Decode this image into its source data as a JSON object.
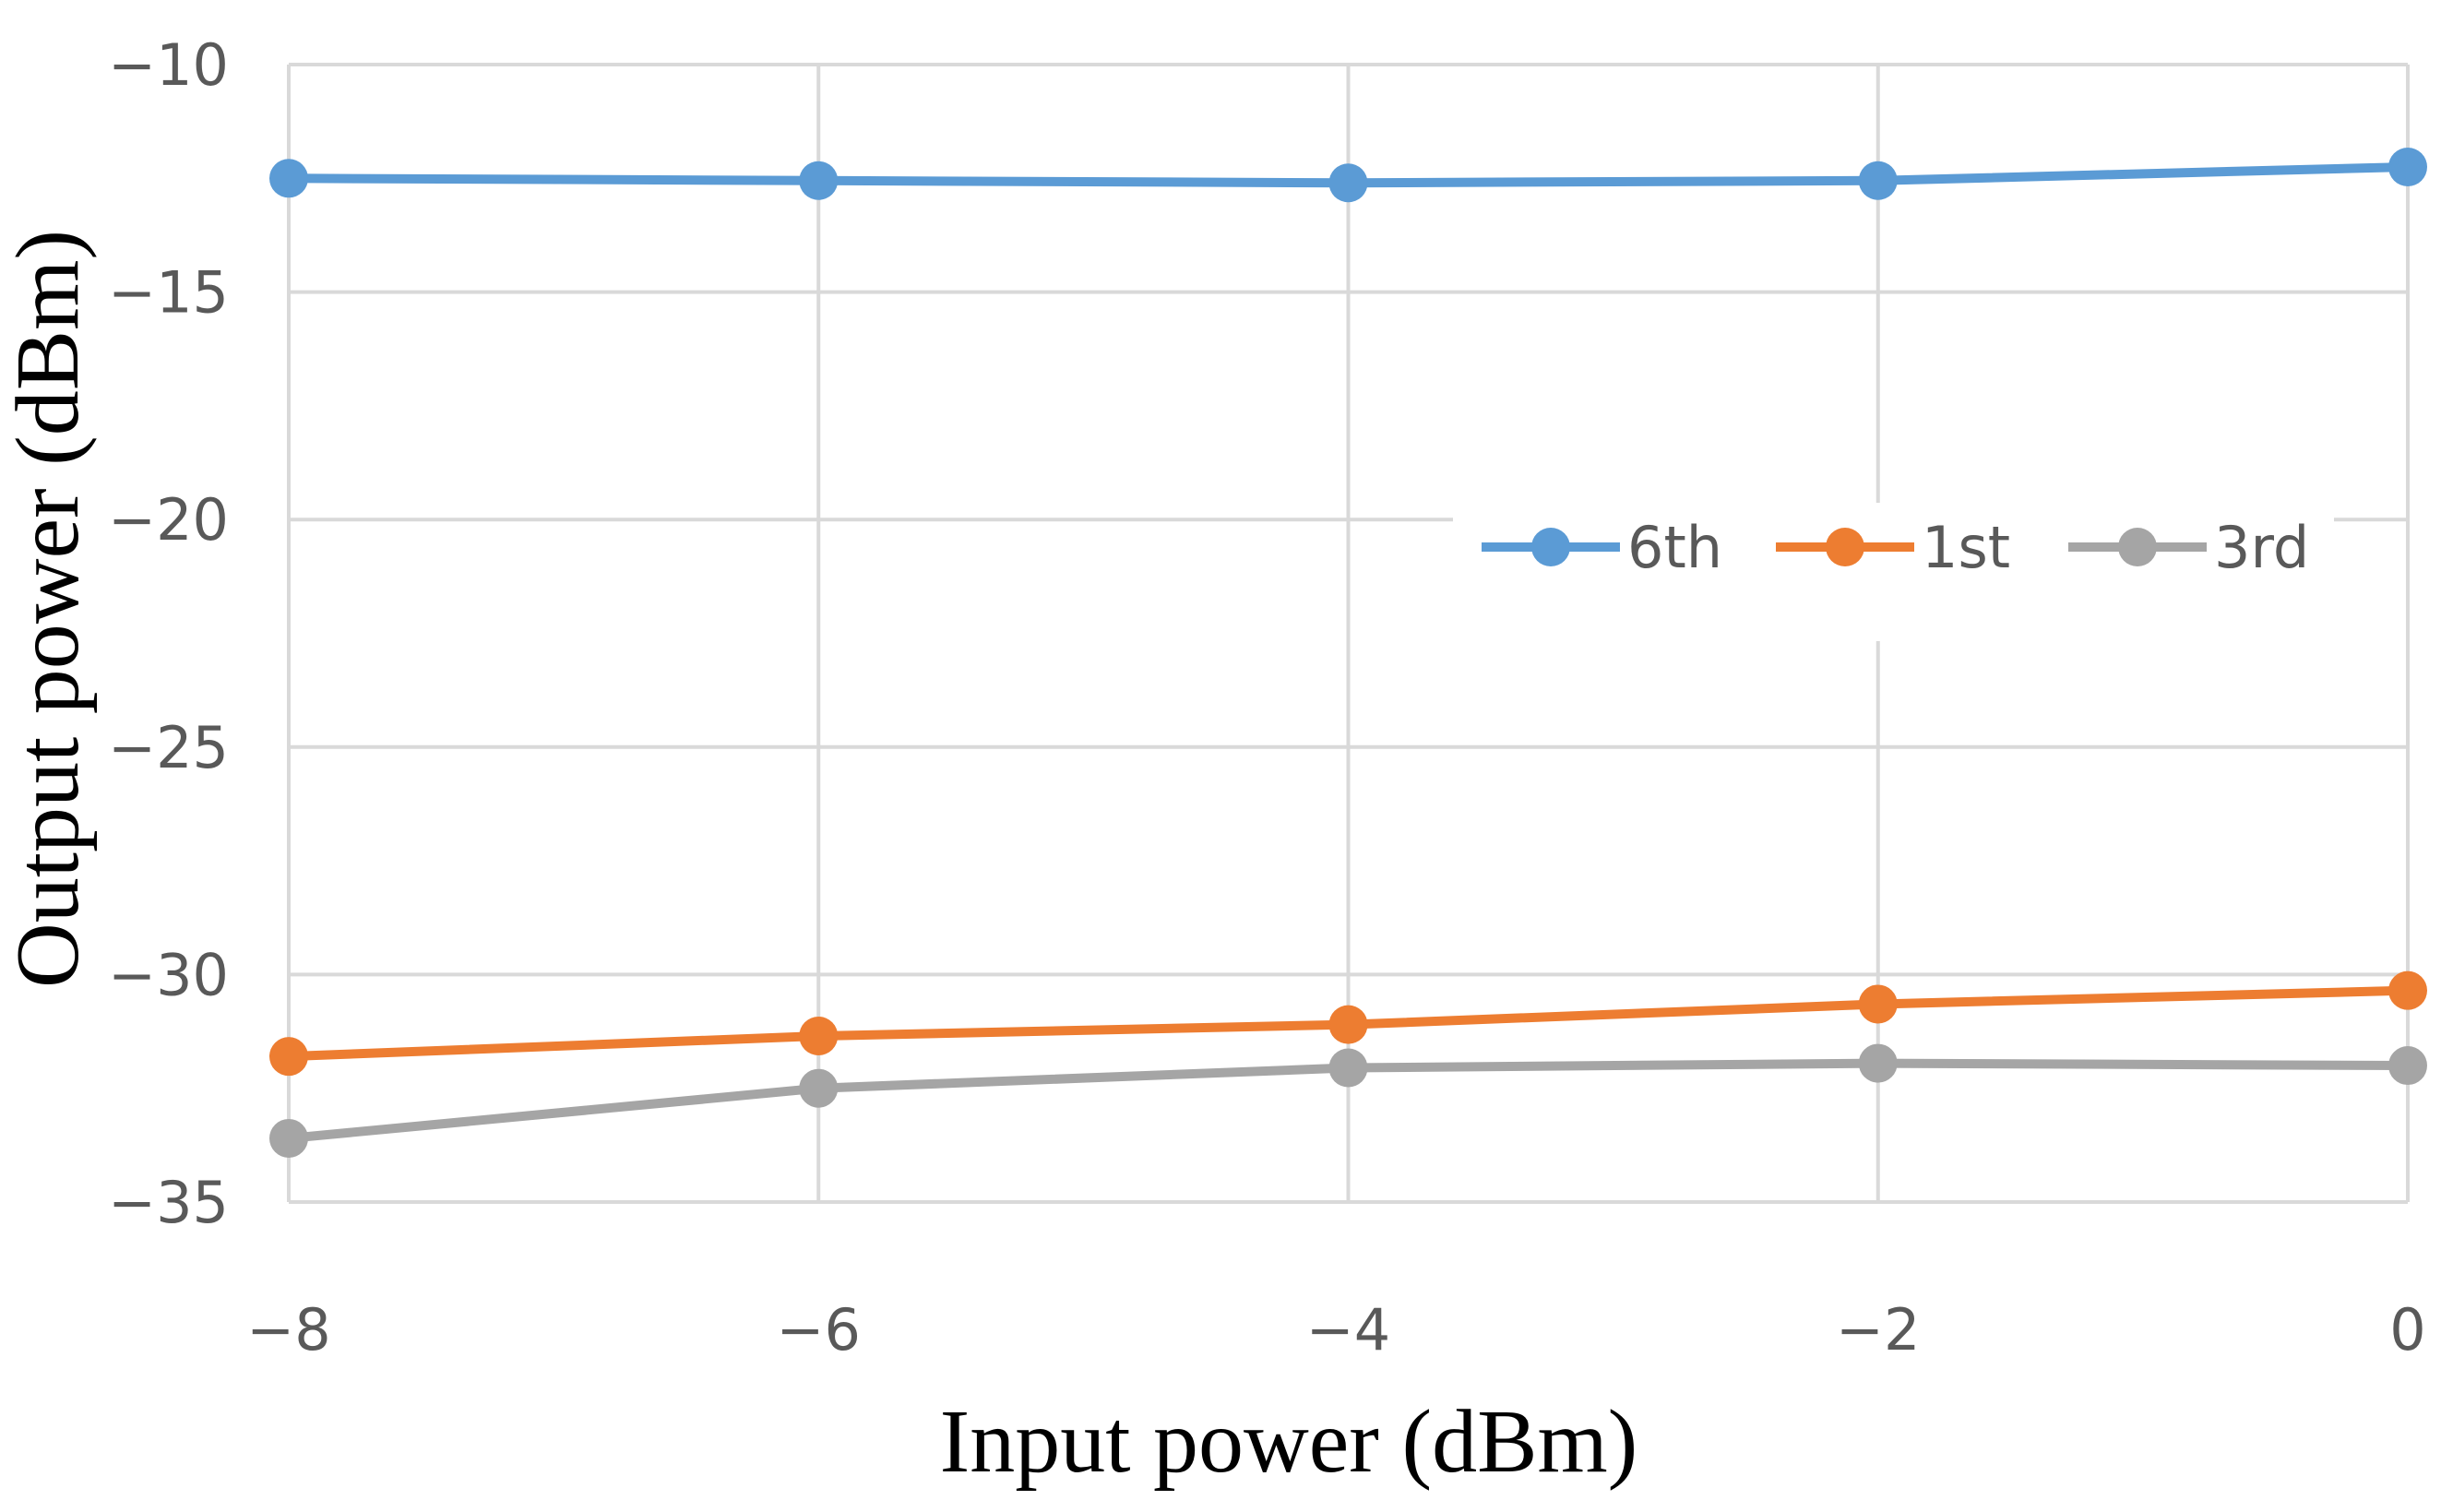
{
  "chart_data": {
    "type": "line",
    "title": "",
    "xlabel": "Input power (dBm)",
    "ylabel": "Output power (dBm)",
    "x": [
      -8,
      -6,
      -4,
      -2,
      0
    ],
    "xlim": [
      -8,
      0
    ],
    "ylim": [
      -35,
      -10
    ],
    "xticks": [
      -8,
      -6,
      -4,
      -2,
      0
    ],
    "yticks": [
      -10,
      -15,
      -20,
      -25,
      -30,
      -35
    ],
    "xtick_labels": [
      "−8",
      "−6",
      "−4",
      "−2",
      "0"
    ],
    "ytick_labels": [
      "−10",
      "−15",
      "−20",
      "−25",
      "−30",
      "−35"
    ],
    "grid": true,
    "legend_position": "center-right",
    "series": [
      {
        "name": "6th",
        "color": "#5b9bd5",
        "values": [
          -12.5,
          -12.55,
          -12.6,
          -12.55,
          -12.25
        ]
      },
      {
        "name": "1st",
        "color": "#ed7d31",
        "values": [
          -31.8,
          -31.35,
          -31.1,
          -30.65,
          -30.35
        ]
      },
      {
        "name": "3rd",
        "color": "#a5a5a5",
        "values": [
          -33.6,
          -32.5,
          -32.05,
          -31.95,
          -32.0
        ]
      }
    ]
  }
}
